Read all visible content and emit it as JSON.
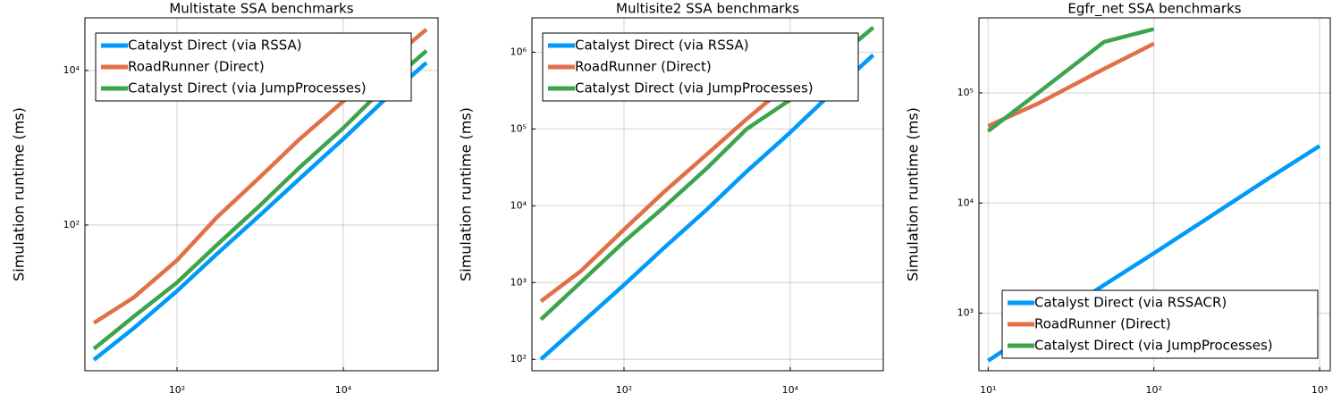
{
  "chart_data": [
    {
      "type": "line",
      "title": "Multistate SSA benchmarks",
      "ylabel": "Simulation runtime (ms)",
      "x": [
        10,
        30,
        100,
        300,
        1000,
        3000,
        10000,
        30000,
        100000
      ],
      "series": [
        {
          "name": "Catalyst Direct (via RSSA)",
          "color": "#009afa",
          "values": [
            1.8,
            4.6,
            14,
            42,
            135,
            400,
            1300,
            4000,
            12600
          ]
        },
        {
          "name": "RoadRunner (Direct)",
          "color": "#e26f46",
          "values": [
            5.4,
            11.5,
            35,
            125,
            420,
            1300,
            4000,
            11500,
            34000
          ]
        },
        {
          "name": "Catalyst Direct (via JumpProcesses)",
          "color": "#3da44d",
          "values": [
            2.5,
            6.5,
            18,
            55,
            180,
            560,
            1800,
            5800,
            18000
          ]
        }
      ],
      "xscale": "log",
      "yscale": "log",
      "xlim": [
        7.8,
        138000
      ],
      "ylim": [
        1.3,
        48000
      ],
      "xticks": [
        {
          "value": 100,
          "label": "10²"
        },
        {
          "value": 10000,
          "label": "10⁴"
        }
      ],
      "yticks": [
        {
          "value": 100,
          "label": "10²"
        },
        {
          "value": 10000,
          "label": "10⁴"
        }
      ],
      "grid": true,
      "legend": "top left"
    },
    {
      "type": "line",
      "title": "Multisite2 SSA benchmarks",
      "ylabel": "Simulation runtime (ms)",
      "x": [
        10,
        30,
        100,
        300,
        1000,
        3000,
        10000,
        30000,
        100000
      ],
      "series": [
        {
          "name": "Catalyst Direct (via RSSA)",
          "color": "#009afa",
          "values": [
            100,
            290,
            930,
            2800,
            9000,
            28000,
            90000,
            280000,
            920000
          ]
        },
        {
          "name": "RoadRunner (Direct)",
          "color": "#e26f46",
          "values": [
            570,
            1400,
            4900,
            15000,
            47000,
            135000,
            400000,
            null,
            null
          ]
        },
        {
          "name": "Catalyst Direct (via JumpProcesses)",
          "color": "#3da44d",
          "values": [
            330,
            1000,
            3400,
            9500,
            31000,
            100000,
            240000,
            700000,
            2100000
          ]
        }
      ],
      "xscale": "log",
      "yscale": "log",
      "xlim": [
        7.8,
        132000
      ],
      "ylim": [
        71,
        2800000
      ],
      "xticks": [
        {
          "value": 100,
          "label": "10²"
        },
        {
          "value": 10000,
          "label": "10⁴"
        }
      ],
      "yticks": [
        {
          "value": 100,
          "label": "10²"
        },
        {
          "value": 1000,
          "label": "10³"
        },
        {
          "value": 10000,
          "label": "10⁴"
        },
        {
          "value": 100000,
          "label": "10⁵"
        },
        {
          "value": 1000000,
          "label": "10⁶"
        }
      ],
      "grid": true,
      "legend": "top left"
    },
    {
      "type": "line",
      "title": "Egfr_net SSA benchmarks",
      "ylabel": "Simulation runtime (ms)",
      "x": [
        10,
        20,
        50,
        100,
        200,
        500,
        1000
      ],
      "series": [
        {
          "name": "Catalyst Direct (via RSSACR)",
          "color": "#009afa",
          "values": [
            370,
            730,
            1800,
            3500,
            6900,
            17000,
            33000
          ]
        },
        {
          "name": "RoadRunner (Direct)",
          "color": "#e26f46",
          "values": [
            50000,
            80000,
            165000,
            280000,
            null,
            null,
            null
          ]
        },
        {
          "name": "Catalyst Direct (via JumpProcesses)",
          "color": "#3da44d",
          "values": [
            45000,
            100000,
            290000,
            380000,
            null,
            null,
            null
          ]
        }
      ],
      "xscale": "log",
      "yscale": "log",
      "xlim": [
        8.8,
        1160
      ],
      "ylim": [
        300,
        480000
      ],
      "xticks": [
        {
          "value": 10,
          "label": "10¹"
        },
        {
          "value": 100,
          "label": "10²"
        },
        {
          "value": 1000,
          "label": "10³"
        }
      ],
      "yticks": [
        {
          "value": 1000,
          "label": "10³"
        },
        {
          "value": 10000,
          "label": "10⁴"
        },
        {
          "value": 100000,
          "label": "10⁵"
        }
      ],
      "grid": true,
      "legend": "bottom right"
    }
  ]
}
